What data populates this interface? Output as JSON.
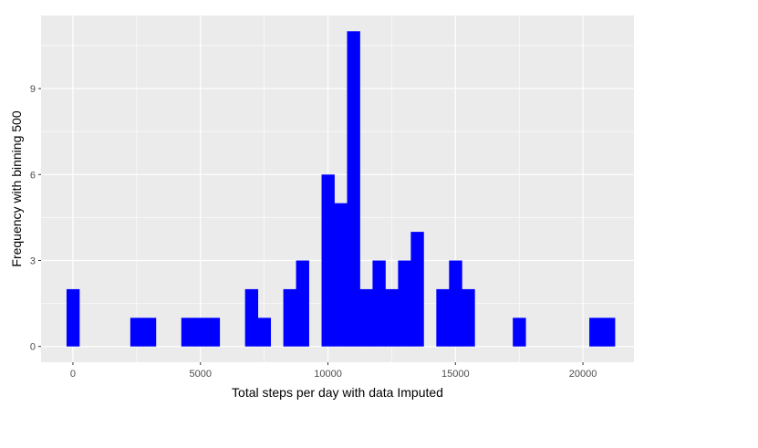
{
  "chart_data": {
    "type": "bar",
    "subtype": "histogram",
    "xlabel": "Total steps per day with data Imputed",
    "ylabel": "Frequency with binning 500",
    "bin_width": 500,
    "xlim": [
      -1250,
      22000
    ],
    "ylim": [
      -0.55,
      11.55
    ],
    "x_ticks": [
      0,
      5000,
      10000,
      15000,
      20000
    ],
    "y_ticks": [
      0,
      3,
      6,
      9
    ],
    "grid": true,
    "legend": "none",
    "colors": {
      "bar": "#0000ff",
      "panel": "#ebebeb",
      "grid": "#ffffff"
    },
    "bins": [
      {
        "start": -250,
        "count": 2
      },
      {
        "start": 2250,
        "count": 1
      },
      {
        "start": 2750,
        "count": 1
      },
      {
        "start": 4250,
        "count": 1
      },
      {
        "start": 4750,
        "count": 1
      },
      {
        "start": 5250,
        "count": 1
      },
      {
        "start": 6750,
        "count": 2
      },
      {
        "start": 7250,
        "count": 1
      },
      {
        "start": 8250,
        "count": 2
      },
      {
        "start": 8750,
        "count": 3
      },
      {
        "start": 9750,
        "count": 6
      },
      {
        "start": 10250,
        "count": 5
      },
      {
        "start": 10750,
        "count": 11
      },
      {
        "start": 11250,
        "count": 2
      },
      {
        "start": 11750,
        "count": 3
      },
      {
        "start": 12250,
        "count": 2
      },
      {
        "start": 12750,
        "count": 3
      },
      {
        "start": 13250,
        "count": 4
      },
      {
        "start": 14250,
        "count": 2
      },
      {
        "start": 14750,
        "count": 3
      },
      {
        "start": 15250,
        "count": 2
      },
      {
        "start": 17250,
        "count": 1
      },
      {
        "start": 20250,
        "count": 1
      },
      {
        "start": 20750,
        "count": 1
      }
    ]
  }
}
